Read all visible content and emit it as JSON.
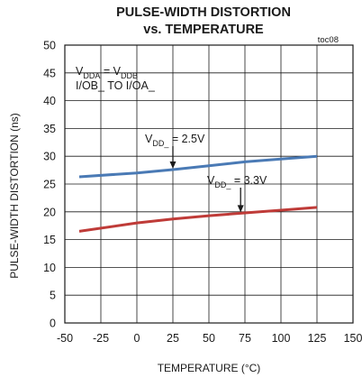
{
  "chart_data": {
    "type": "line",
    "title_line1": "PULSE-WIDTH DISTORTION",
    "title_line2": "vs. TEMPERATURE",
    "tag": "toc08",
    "xlabel": "TEMPERATURE (°C)",
    "ylabel": "PULSE-WIDTH DISTORTION (ns)",
    "xlim": [
      -50,
      150
    ],
    "ylim": [
      0,
      50
    ],
    "xticks": [
      -50,
      -25,
      0,
      25,
      50,
      75,
      100,
      125,
      150
    ],
    "yticks": [
      0,
      5,
      10,
      15,
      20,
      25,
      30,
      35,
      40,
      45,
      50
    ],
    "grid": true,
    "condition": {
      "line1_main": "V",
      "line1_sub_a": "DDA",
      "line1_eq": " = V",
      "line1_sub_b": "DDB",
      "line2": "I/OB_ TO I/OA_"
    },
    "series": [
      {
        "label_main": "V",
        "label_sub": "DD_",
        "label_value": " = 2.5V",
        "color": "#4a7ab5",
        "x": [
          -40,
          0,
          25,
          50,
          75,
          100,
          125
        ],
        "y": [
          26.3,
          27.0,
          27.6,
          28.3,
          29.0,
          29.5,
          30.0
        ],
        "arrow_at_x": 25
      },
      {
        "label_main": "V",
        "label_sub": "DD_",
        "label_value": " = 3.3V",
        "color": "#bf3b38",
        "x": [
          -40,
          0,
          25,
          50,
          75,
          100,
          125
        ],
        "y": [
          16.5,
          18.0,
          18.7,
          19.3,
          19.8,
          20.3,
          20.8
        ],
        "arrow_at_x": 72
      }
    ]
  }
}
